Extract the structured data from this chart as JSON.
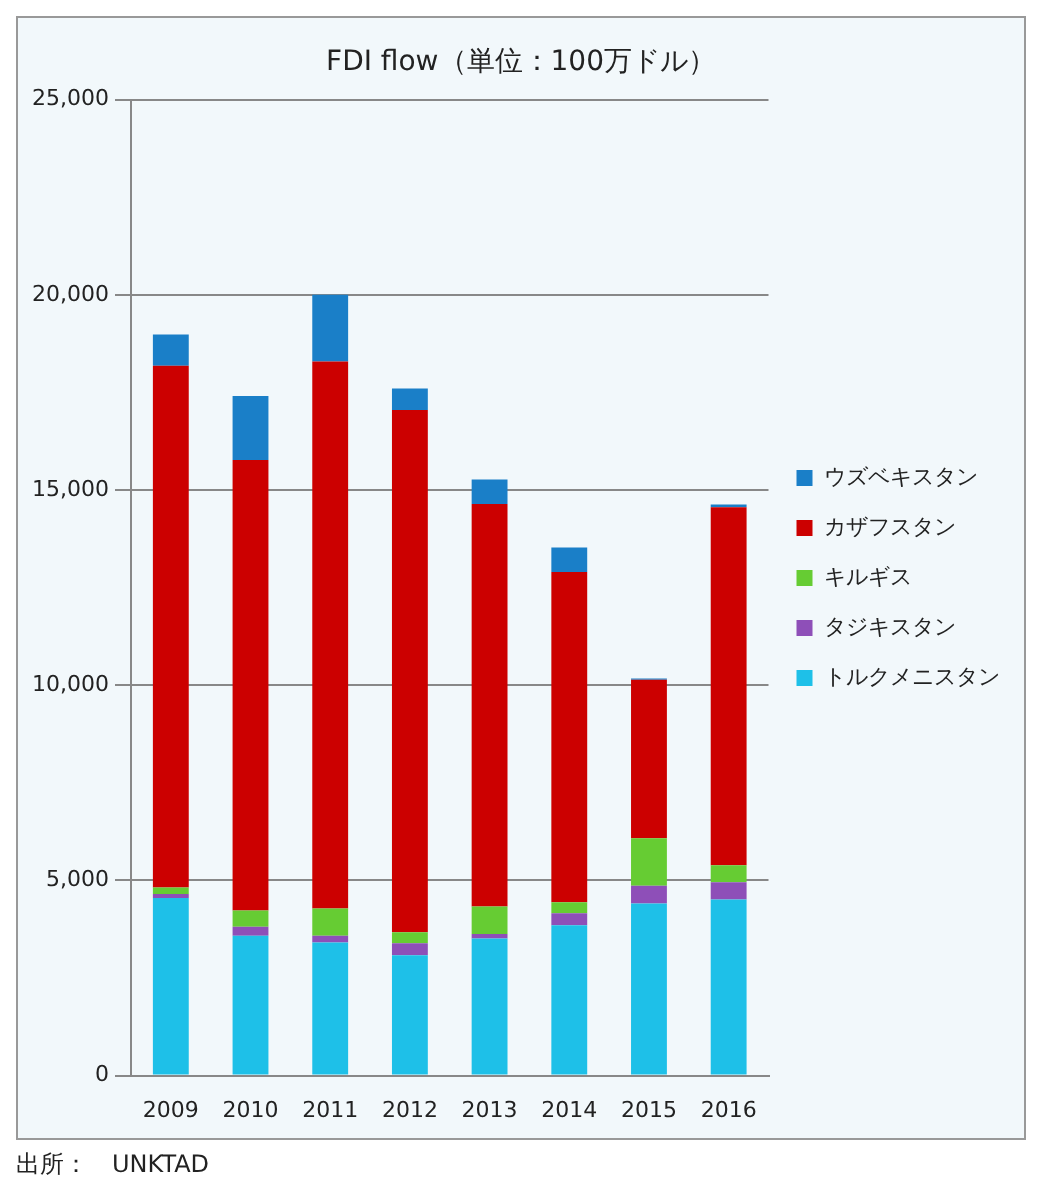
{
  "chart_data": {
    "type": "bar",
    "title": "FDI flow（単位：100万ドル）",
    "stacked": true,
    "categories": [
      "2009",
      "2010",
      "2011",
      "2012",
      "2013",
      "2014",
      "2015",
      "2016"
    ],
    "series": [
      {
        "name": "トルクメニスタン",
        "color": "#1ec0e8",
        "values": [
          4550,
          3580,
          3410,
          3080,
          3510,
          3850,
          4410,
          4510
        ]
      },
      {
        "name": "タジキスタン",
        "color": "#8e4fb8",
        "values": [
          100,
          230,
          170,
          310,
          120,
          310,
          450,
          440
        ]
      },
      {
        "name": "キルギス",
        "color": "#66cc33",
        "values": [
          170,
          420,
          700,
          280,
          700,
          280,
          1220,
          440
        ]
      },
      {
        "name": "カザフスタン",
        "color": "#cc0000",
        "values": [
          13360,
          11540,
          14010,
          13380,
          10310,
          8460,
          4060,
          9170
        ]
      },
      {
        "name": "ウズベキスタン",
        "color": "#1a7fc8",
        "values": [
          800,
          1640,
          1710,
          550,
          630,
          630,
          30,
          70
        ]
      }
    ],
    "ylim": [
      0,
      25000
    ],
    "yticks": [
      0,
      {
        "value": 5000,
        "label": "5,000"
      },
      {
        "value": 10000,
        "label": "10,000"
      },
      {
        "value": 15000,
        "label": "15,000"
      },
      {
        "value": 20000,
        "label": "20,000"
      },
      {
        "value": 25000,
        "label": "25,000"
      }
    ],
    "grid": "y",
    "legend": "right",
    "annotations": [
      "出所：　UNKTAD"
    ]
  }
}
